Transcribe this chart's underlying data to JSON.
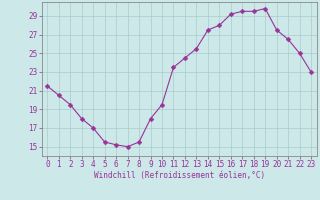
{
  "x": [
    0,
    1,
    2,
    3,
    4,
    5,
    6,
    7,
    8,
    9,
    10,
    11,
    12,
    13,
    14,
    15,
    16,
    17,
    18,
    19,
    20,
    21,
    22,
    23
  ],
  "y": [
    21.5,
    20.5,
    19.5,
    18.0,
    17.0,
    15.5,
    15.2,
    15.0,
    15.5,
    18.0,
    19.5,
    23.5,
    24.5,
    25.5,
    27.5,
    28.0,
    29.2,
    29.5,
    29.5,
    29.8,
    27.5,
    26.5,
    25.0,
    23.0
  ],
  "line_color": "#993399",
  "marker": "D",
  "marker_size": 2.5,
  "bg_color": "#cce8e8",
  "grid_color": "#aacccc",
  "tick_color": "#993399",
  "label_color": "#993399",
  "xlabel": "Windchill (Refroidissement éolien,°C)",
  "yticks": [
    15,
    17,
    19,
    21,
    23,
    25,
    27,
    29
  ],
  "xticks": [
    0,
    1,
    2,
    3,
    4,
    5,
    6,
    7,
    8,
    9,
    10,
    11,
    12,
    13,
    14,
    15,
    16,
    17,
    18,
    19,
    20,
    21,
    22,
    23
  ],
  "ylim": [
    14.0,
    30.5
  ],
  "xlim": [
    -0.5,
    23.5
  ]
}
